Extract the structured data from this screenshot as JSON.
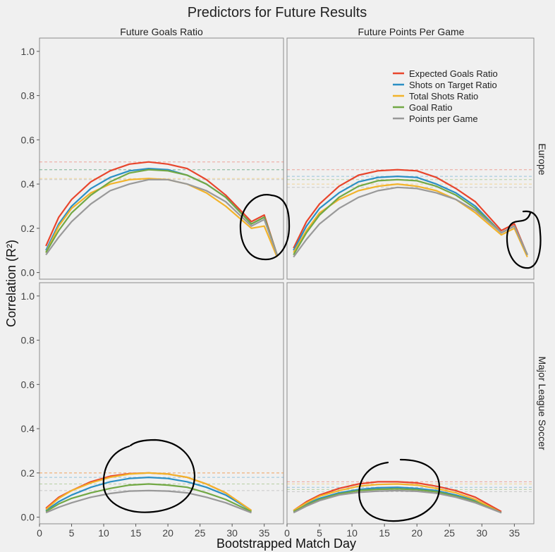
{
  "title": "Predictors for Future Results",
  "xlabel": "Bootstrapped Match Day",
  "ylabel": "Correlation (R²)",
  "columns": [
    "Future Goals Ratio",
    "Future Points Per Game"
  ],
  "rows": [
    "Europe",
    "Major League Soccer"
  ],
  "legend": {
    "placement": "top-right",
    "entries": [
      {
        "name": "Expected Goals Ratio",
        "color": "#e8452c"
      },
      {
        "name": "Shots on Target Ratio",
        "color": "#2b8fc4"
      },
      {
        "name": "Total Shots Ratio",
        "color": "#f2b32a"
      },
      {
        "name": "Goal Ratio",
        "color": "#72a845"
      },
      {
        "name": "Points per Game",
        "color": "#999999"
      }
    ]
  },
  "chart_data": {
    "type": "line",
    "xlim": [
      0,
      38
    ],
    "ylim": [
      -0.03,
      1.06
    ],
    "x_ticks": [
      0,
      5,
      10,
      15,
      20,
      25,
      30,
      35
    ],
    "y_ticks": [
      0.0,
      0.2,
      0.4,
      0.6,
      0.8,
      1.0
    ],
    "grid": false,
    "panels": [
      {
        "column": "Future Goals Ratio",
        "row": "Europe",
        "series": [
          {
            "name": "Expected Goals Ratio",
            "x": [
              1,
              3,
              5,
              8,
              11,
              14,
              17,
              20,
              23,
              26,
              29,
              33,
              35,
              37
            ],
            "y": [
              0.12,
              0.25,
              0.33,
              0.41,
              0.46,
              0.49,
              0.5,
              0.49,
              0.47,
              0.42,
              0.35,
              0.23,
              0.26,
              0.08
            ],
            "baseline": 0.5
          },
          {
            "name": "Shots on Target Ratio",
            "x": [
              1,
              3,
              5,
              8,
              11,
              14,
              17,
              20,
              23,
              26,
              29,
              33,
              35,
              37
            ],
            "y": [
              0.1,
              0.22,
              0.3,
              0.38,
              0.43,
              0.46,
              0.47,
              0.465,
              0.44,
              0.4,
              0.34,
              0.22,
              0.25,
              0.08
            ],
            "baseline": 0.465
          },
          {
            "name": "Total Shots Ratio",
            "x": [
              1,
              3,
              5,
              8,
              11,
              14,
              17,
              20,
              23,
              26,
              29,
              33,
              35,
              37
            ],
            "y": [
              0.09,
              0.21,
              0.29,
              0.36,
              0.4,
              0.42,
              0.425,
              0.42,
              0.4,
              0.36,
              0.3,
              0.2,
              0.21,
              0.07
            ],
            "baseline": 0.425
          },
          {
            "name": "Goal Ratio",
            "x": [
              1,
              3,
              5,
              8,
              11,
              14,
              17,
              20,
              23,
              26,
              29,
              33,
              35,
              37
            ],
            "y": [
              0.09,
              0.19,
              0.27,
              0.35,
              0.41,
              0.45,
              0.465,
              0.46,
              0.44,
              0.4,
              0.34,
              0.22,
              0.25,
              0.08
            ],
            "baseline": 0.465
          },
          {
            "name": "Points per Game",
            "x": [
              1,
              3,
              5,
              8,
              11,
              14,
              17,
              20,
              23,
              26,
              29,
              33,
              35,
              37
            ],
            "y": [
              0.08,
              0.16,
              0.23,
              0.31,
              0.37,
              0.4,
              0.42,
              0.42,
              0.4,
              0.37,
              0.32,
              0.21,
              0.24,
              0.08
            ],
            "baseline": 0.42
          }
        ]
      },
      {
        "column": "Future Points Per Game",
        "row": "Europe",
        "series": [
          {
            "name": "Expected Goals Ratio",
            "x": [
              1,
              3,
              5,
              8,
              11,
              14,
              17,
              20,
              23,
              26,
              29,
              33,
              35,
              37
            ],
            "y": [
              0.11,
              0.23,
              0.31,
              0.39,
              0.44,
              0.46,
              0.465,
              0.46,
              0.43,
              0.38,
              0.32,
              0.19,
              0.22,
              0.08
            ],
            "baseline": 0.465
          },
          {
            "name": "Shots on Target Ratio",
            "x": [
              1,
              3,
              5,
              8,
              11,
              14,
              17,
              20,
              23,
              26,
              29,
              33,
              35,
              37
            ],
            "y": [
              0.1,
              0.21,
              0.29,
              0.36,
              0.41,
              0.43,
              0.435,
              0.43,
              0.4,
              0.36,
              0.3,
              0.18,
              0.21,
              0.08
            ],
            "baseline": 0.435
          },
          {
            "name": "Total Shots Ratio",
            "x": [
              1,
              3,
              5,
              8,
              11,
              14,
              17,
              20,
              23,
              26,
              29,
              33,
              35,
              37
            ],
            "y": [
              0.09,
              0.19,
              0.27,
              0.33,
              0.37,
              0.39,
              0.4,
              0.39,
              0.37,
              0.33,
              0.27,
              0.17,
              0.2,
              0.07
            ],
            "baseline": 0.4
          },
          {
            "name": "Goal Ratio",
            "x": [
              1,
              3,
              5,
              8,
              11,
              14,
              17,
              20,
              23,
              26,
              29,
              33,
              35,
              37
            ],
            "y": [
              0.08,
              0.18,
              0.26,
              0.34,
              0.39,
              0.415,
              0.42,
              0.415,
              0.39,
              0.35,
              0.29,
              0.18,
              0.21,
              0.08
            ],
            "baseline": 0.42
          },
          {
            "name": "Points per Game",
            "x": [
              1,
              3,
              5,
              8,
              11,
              14,
              17,
              20,
              23,
              26,
              29,
              33,
              35,
              37
            ],
            "y": [
              0.07,
              0.15,
              0.22,
              0.29,
              0.34,
              0.37,
              0.385,
              0.38,
              0.36,
              0.33,
              0.28,
              0.18,
              0.21,
              0.08
            ],
            "baseline": 0.385
          }
        ]
      },
      {
        "column": "Future Goals Ratio",
        "row": "Major League Soccer",
        "series": [
          {
            "name": "Expected Goals Ratio",
            "x": [
              1,
              3,
              5,
              8,
              11,
              14,
              17,
              20,
              23,
              26,
              29,
              33
            ],
            "y": [
              0.04,
              0.09,
              0.12,
              0.16,
              0.185,
              0.197,
              0.2,
              0.195,
              0.18,
              0.15,
              0.11,
              0.03
            ],
            "baseline": 0.2
          },
          {
            "name": "Shots on Target Ratio",
            "x": [
              1,
              3,
              5,
              8,
              11,
              14,
              17,
              20,
              23,
              26,
              29,
              33
            ],
            "y": [
              0.03,
              0.07,
              0.1,
              0.135,
              0.16,
              0.175,
              0.18,
              0.175,
              0.16,
              0.135,
              0.1,
              0.03
            ],
            "baseline": 0.18
          },
          {
            "name": "Total Shots Ratio",
            "x": [
              1,
              3,
              5,
              8,
              11,
              14,
              17,
              20,
              23,
              26,
              29,
              33
            ],
            "y": [
              0.035,
              0.085,
              0.12,
              0.155,
              0.18,
              0.195,
              0.2,
              0.195,
              0.18,
              0.15,
              0.11,
              0.03
            ],
            "baseline": 0.2
          },
          {
            "name": "Goal Ratio",
            "x": [
              1,
              3,
              5,
              8,
              11,
              14,
              17,
              20,
              23,
              26,
              29,
              33
            ],
            "y": [
              0.025,
              0.06,
              0.085,
              0.11,
              0.13,
              0.145,
              0.15,
              0.145,
              0.135,
              0.11,
              0.08,
              0.025
            ],
            "baseline": 0.15
          },
          {
            "name": "Points per Game",
            "x": [
              1,
              3,
              5,
              8,
              11,
              14,
              17,
              20,
              23,
              26,
              29,
              33
            ],
            "y": [
              0.02,
              0.045,
              0.065,
              0.09,
              0.107,
              0.118,
              0.12,
              0.118,
              0.11,
              0.09,
              0.065,
              0.02
            ],
            "baseline": 0.12
          }
        ]
      },
      {
        "column": "Future Points Per Game",
        "row": "Major League Soccer",
        "series": [
          {
            "name": "Expected Goals Ratio",
            "x": [
              1,
              3,
              5,
              8,
              11,
              14,
              17,
              20,
              23,
              26,
              29,
              33
            ],
            "y": [
              0.03,
              0.07,
              0.1,
              0.13,
              0.15,
              0.16,
              0.16,
              0.155,
              0.14,
              0.12,
              0.09,
              0.025
            ],
            "baseline": 0.16
          },
          {
            "name": "Shots on Target Ratio",
            "x": [
              1,
              3,
              5,
              8,
              11,
              14,
              17,
              20,
              23,
              26,
              29,
              33
            ],
            "y": [
              0.025,
              0.06,
              0.085,
              0.11,
              0.125,
              0.133,
              0.135,
              0.13,
              0.12,
              0.1,
              0.075,
              0.02
            ],
            "baseline": 0.135
          },
          {
            "name": "Total Shots Ratio",
            "x": [
              1,
              3,
              5,
              8,
              11,
              14,
              17,
              20,
              23,
              26,
              29,
              33
            ],
            "y": [
              0.03,
              0.065,
              0.095,
              0.12,
              0.14,
              0.148,
              0.15,
              0.145,
              0.13,
              0.11,
              0.08,
              0.02
            ],
            "baseline": 0.15
          },
          {
            "name": "Goal Ratio",
            "x": [
              1,
              3,
              5,
              8,
              11,
              14,
              17,
              20,
              23,
              26,
              29,
              33
            ],
            "y": [
              0.025,
              0.055,
              0.08,
              0.105,
              0.12,
              0.126,
              0.128,
              0.124,
              0.115,
              0.095,
              0.07,
              0.02
            ],
            "baseline": 0.125
          },
          {
            "name": "Points per Game",
            "x": [
              1,
              3,
              5,
              8,
              11,
              14,
              17,
              20,
              23,
              26,
              29,
              33
            ],
            "y": [
              0.02,
              0.05,
              0.075,
              0.1,
              0.112,
              0.118,
              0.12,
              0.117,
              0.108,
              0.09,
              0.065,
              0.02
            ],
            "baseline": 0.115
          }
        ]
      }
    ]
  }
}
